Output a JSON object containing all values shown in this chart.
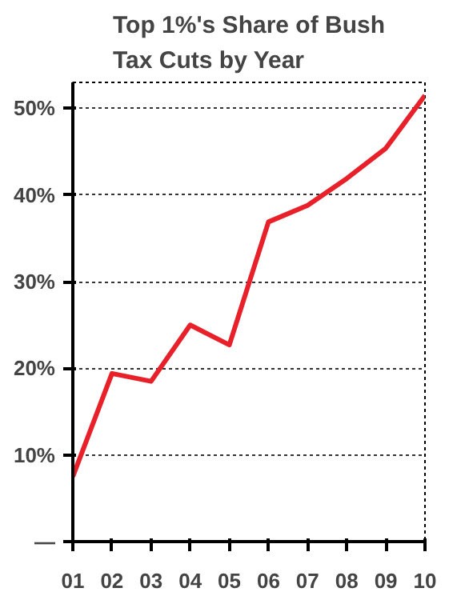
{
  "chart_data": {
    "type": "line",
    "title": "Top 1%'s Share of Bush Tax Cuts by Year",
    "categories": [
      "01",
      "02",
      "03",
      "04",
      "05",
      "06",
      "07",
      "08",
      "09",
      "10"
    ],
    "series": [
      {
        "color": "#e8202a",
        "values": [
          7.5,
          19.4,
          18.5,
          25,
          22.7,
          36.9,
          38.8,
          41.9,
          45.4,
          51.5
        ]
      }
    ],
    "ylim": [
      0,
      53
    ],
    "yticks": [
      {
        "value": 0,
        "label": "—"
      },
      {
        "value": 10,
        "label": "10%"
      },
      {
        "value": 20,
        "label": "20%"
      },
      {
        "value": 30,
        "label": "30%"
      },
      {
        "value": 40,
        "label": "40%"
      },
      {
        "value": 50,
        "label": "50%"
      }
    ],
    "grid": "y",
    "line_style": "solid"
  }
}
